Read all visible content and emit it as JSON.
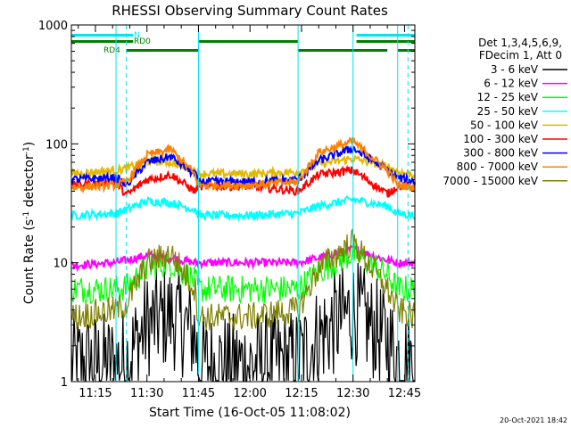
{
  "chart_data": {
    "type": "line",
    "title": "RHESSI Observing Summary Count Rates",
    "xlabel": "Start Time (16-Oct-05 11:08:02)",
    "ylabel": "Count Rate (s⁻¹ detector⁻¹)",
    "ylabel_parts": {
      "main": "Count Rate (s",
      "sup1": "-1",
      "mid": " detector",
      "sup2": "-1",
      "end": ")"
    },
    "yscale": "log",
    "xlim": [
      "11:08",
      "12:48"
    ],
    "ylim": [
      1,
      1000
    ],
    "x_ticks": [
      "11:15",
      "11:30",
      "11:45",
      "12:00",
      "12:15",
      "12:30",
      "12:45"
    ],
    "y_ticks": [
      "1",
      "10",
      "100",
      "1000"
    ],
    "grid": false,
    "legend_position": "right",
    "legend_header": [
      "Det 1,3,4,5,6,9,",
      "FDecim 1, Att 0"
    ],
    "timestamp": "20-Oct-2021 18:42",
    "flags": [
      {
        "name": "N",
        "color": "#00e5ee",
        "spans": [
          [
            "11:08",
            "11:26"
          ],
          [
            "12:31",
            "12:48"
          ]
        ]
      },
      {
        "name": "RD0",
        "color": "#007f00",
        "spans": [
          [
            "11:08",
            "11:26"
          ],
          [
            "11:45",
            "12:14"
          ],
          [
            "12:31",
            "12:48"
          ]
        ]
      },
      {
        "name": "RD4",
        "color": "#007f00",
        "spans": [
          [
            "11:24",
            "11:45"
          ],
          [
            "12:14",
            "12:40"
          ],
          [
            "12:43",
            "12:48"
          ]
        ]
      }
    ],
    "night_boundaries_dashed": [
      "11:24",
      "12:46"
    ],
    "orbit_boundaries_solid": [
      "11:08",
      "11:21",
      "11:45",
      "12:14",
      "12:30",
      "12:43"
    ],
    "series": [
      {
        "name": "3 - 6 keV",
        "color": "#000000",
        "x": [
          "11:08",
          "11:21",
          "11:24",
          "11:30",
          "11:37",
          "11:44",
          "11:45",
          "12:00",
          "12:14",
          "12:20",
          "12:30",
          "12:40",
          "12:43",
          "12:48"
        ],
        "y": [
          1.4,
          1.4,
          1.5,
          3.0,
          3.6,
          2.5,
          1.4,
          1.4,
          1.5,
          2.4,
          4.0,
          2.2,
          1.6,
          1.4
        ]
      },
      {
        "name": "6 - 12 keV",
        "color": "#ff00ff",
        "x": [
          "11:08",
          "11:21",
          "11:24",
          "11:30",
          "11:37",
          "11:44",
          "11:45",
          "12:00",
          "12:14",
          "12:20",
          "12:30",
          "12:40",
          "12:43",
          "12:48"
        ],
        "y": [
          9.5,
          10.0,
          10.5,
          11.5,
          11.0,
          10.0,
          10.0,
          10.0,
          10.0,
          11.0,
          13.0,
          10.5,
          10.0,
          10.0
        ]
      },
      {
        "name": "12 - 25 keV",
        "color": "#00ff00",
        "x": [
          "11:08",
          "11:21",
          "11:24",
          "11:30",
          "11:37",
          "11:44",
          "11:45",
          "12:00",
          "12:14",
          "12:20",
          "12:30",
          "12:40",
          "12:43",
          "12:48"
        ],
        "y": [
          6.0,
          6.0,
          6.2,
          9.0,
          10.0,
          7.0,
          6.0,
          6.0,
          6.0,
          8.5,
          12.0,
          8.0,
          6.0,
          6.0
        ]
      },
      {
        "name": "25 - 50 keV",
        "color": "#00ffff",
        "x": [
          "11:08",
          "11:21",
          "11:24",
          "11:30",
          "11:37",
          "11:44",
          "11:45",
          "12:00",
          "12:14",
          "12:20",
          "12:30",
          "12:40",
          "12:43",
          "12:48"
        ],
        "y": [
          25,
          26,
          28,
          33,
          32,
          28,
          25,
          25,
          26,
          30,
          34,
          30,
          26,
          25
        ]
      },
      {
        "name": "50 - 100 keV",
        "color": "#e5b800",
        "x": [
          "11:08",
          "11:21",
          "11:24",
          "11:30",
          "11:37",
          "11:44",
          "11:45",
          "12:00",
          "12:14",
          "12:20",
          "12:30",
          "12:40",
          "12:43",
          "12:48"
        ],
        "y": [
          56,
          60,
          62,
          72,
          70,
          60,
          56,
          56,
          58,
          68,
          75,
          65,
          58,
          55
        ]
      },
      {
        "name": "100 - 300 keV",
        "color": "#ff0000",
        "x": [
          "11:08",
          "11:21",
          "11:24",
          "11:30",
          "11:37",
          "11:44",
          "11:45",
          "12:00",
          "12:14",
          "12:20",
          "12:30",
          "12:40",
          "12:43",
          "12:48"
        ],
        "y": [
          45,
          48,
          37,
          50,
          55,
          40,
          44,
          44,
          40,
          55,
          60,
          38,
          44,
          44
        ]
      },
      {
        "name": "300 - 800 keV",
        "color": "#0000ff",
        "x": [
          "11:08",
          "11:21",
          "11:24",
          "11:30",
          "11:37",
          "11:44",
          "11:45",
          "12:00",
          "12:14",
          "12:20",
          "12:30",
          "12:40",
          "12:43",
          "12:48"
        ],
        "y": [
          50,
          52,
          45,
          70,
          78,
          55,
          48,
          48,
          50,
          72,
          92,
          60,
          52,
          48
        ]
      },
      {
        "name": "800 - 7000 keV",
        "color": "#ff8000",
        "x": [
          "11:08",
          "11:21",
          "11:24",
          "11:30",
          "11:37",
          "11:44",
          "11:45",
          "12:00",
          "12:14",
          "12:20",
          "12:30",
          "12:40",
          "12:43",
          "12:48"
        ],
        "y": [
          43,
          45,
          48,
          80,
          90,
          55,
          45,
          45,
          48,
          85,
          105,
          60,
          45,
          43
        ]
      },
      {
        "name": "7000 - 15000 keV",
        "color": "#808000",
        "x": [
          "11:08",
          "11:21",
          "11:24",
          "11:30",
          "11:37",
          "11:44",
          "11:45",
          "12:00",
          "12:14",
          "12:20",
          "12:30",
          "12:40",
          "12:43",
          "12:48"
        ],
        "y": [
          3.5,
          4.0,
          4.5,
          10.0,
          12.0,
          6.0,
          3.5,
          3.5,
          4.0,
          9.0,
          15.0,
          6.0,
          4.0,
          3.5
        ]
      }
    ]
  }
}
